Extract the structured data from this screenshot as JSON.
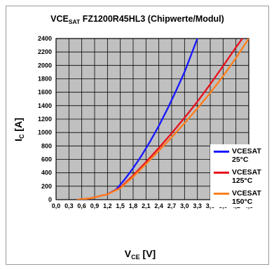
{
  "title": {
    "main": "VCE",
    "sub": "SAT",
    "rest": "  FZ1200R45HL3 (Chipwerte/Modul)"
  },
  "axes": {
    "x_label_main": "V",
    "x_label_sub": "CE",
    "x_label_unit": " [V]",
    "y_label_main": "I",
    "y_label_sub": "C",
    "y_label_unit": " [A]"
  },
  "chart_data": {
    "type": "line",
    "title": "VCESAT FZ1200R45HL3 (Chipwerte/Modul)",
    "xlabel": "VCE [V]",
    "ylabel": "IC [A]",
    "xlim": [
      0,
      4.5
    ],
    "ylim": [
      0,
      2400
    ],
    "x_ticks": [
      0.0,
      0.3,
      0.6,
      0.9,
      1.2,
      1.5,
      1.8,
      2.1,
      2.4,
      2.7,
      3.0,
      3.3,
      3.6,
      3.9,
      4.2,
      4.5
    ],
    "x_tick_labels": [
      "0,0",
      "0,3",
      "0,6",
      "0,9",
      "1,2",
      "1,5",
      "1,8",
      "2,1",
      "2,4",
      "2,7",
      "3,0",
      "3,3",
      "3,6",
      "3,9",
      "4,2",
      "4,5"
    ],
    "y_ticks": [
      0,
      200,
      400,
      600,
      800,
      1000,
      1200,
      1400,
      1600,
      1800,
      2000,
      2200,
      2400
    ],
    "y_tick_labels": [
      "0",
      "200",
      "400",
      "600",
      "800",
      "1000",
      "1200",
      "1400",
      "1600",
      "1800",
      "2000",
      "2200",
      "2400"
    ],
    "grid": true,
    "legend_position": "bottom-right",
    "plot_background": "#c0c0c0",
    "series": [
      {
        "name": "VCESAT\n25°C",
        "color": "#1a1aff",
        "x": [
          0.5,
          0.8,
          1.0,
          1.2,
          1.4,
          1.6,
          1.8,
          2.0,
          2.2,
          2.4,
          2.6,
          2.8,
          3.0,
          3.3
        ],
        "y": [
          0,
          20,
          50,
          80,
          150,
          300,
          470,
          660,
          870,
          1100,
          1350,
          1620,
          1900,
          2400
        ]
      },
      {
        "name": "VCESAT\n125°C",
        "color": "#e8121d",
        "x": [
          0.5,
          0.8,
          1.0,
          1.2,
          1.5,
          1.8,
          2.1,
          2.4,
          2.7,
          3.0,
          3.3,
          3.6,
          3.9,
          4.2,
          4.35
        ],
        "y": [
          0,
          20,
          50,
          80,
          180,
          360,
          560,
          770,
          990,
          1220,
          1460,
          1720,
          1990,
          2270,
          2400
        ]
      },
      {
        "name": "VCESAT\n150°C",
        "color": "#ff7f1e",
        "x": [
          0.5,
          0.8,
          1.0,
          1.2,
          1.5,
          1.8,
          2.1,
          2.4,
          2.7,
          3.0,
          3.3,
          3.6,
          3.9,
          4.2,
          4.5
        ],
        "y": [
          0,
          20,
          50,
          80,
          170,
          340,
          530,
          730,
          930,
          1140,
          1360,
          1590,
          1840,
          2110,
          2400
        ]
      }
    ]
  }
}
